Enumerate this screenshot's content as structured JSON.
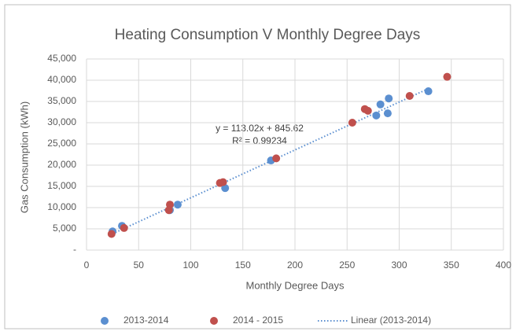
{
  "chart_data": {
    "type": "scatter",
    "title": "Heating Consumption V Monthly Degree Days",
    "x_label": "Monthly Degree Days",
    "y_label": "Gas Consumption  (kWh)",
    "series": [
      {
        "name": "2013-2014",
        "color": "#5b8fd0",
        "x": [
          25,
          34,
          80,
          87.5,
          133,
          177,
          278,
          282,
          289,
          290,
          328
        ],
        "values": [
          4400,
          5700,
          9400,
          10700,
          14600,
          21100,
          31700,
          34300,
          32200,
          35700,
          37400
        ]
      },
      {
        "name": "2014 - 2015",
        "color": "#c0504d",
        "x": [
          24,
          36,
          80,
          79,
          128,
          131,
          182,
          255,
          267,
          270,
          310,
          346
        ],
        "values": [
          3800,
          5200,
          10700,
          9400,
          15800,
          16000,
          21600,
          30000,
          33200,
          32800,
          36300,
          40800
        ]
      }
    ],
    "trendline": {
      "name": "Linear (2013-2014)",
      "color": "#5b8fd0",
      "equation": "y = 113.02x + 845.62",
      "r_squared": "R² = 0.99234"
    },
    "xlim": [
      0,
      400
    ],
    "xticks": [
      0,
      50,
      100,
      150,
      200,
      250,
      300,
      350,
      400
    ],
    "ylim": [
      0,
      45000
    ],
    "yticks": [
      {
        "value": 0,
        "label": "-"
      },
      {
        "value": 5000,
        "label": "5,000"
      },
      {
        "value": 10000,
        "label": "10,000"
      },
      {
        "value": 15000,
        "label": "15,000"
      },
      {
        "value": 20000,
        "label": "20,000"
      },
      {
        "value": 25000,
        "label": "25,000"
      },
      {
        "value": 30000,
        "label": "30,000"
      },
      {
        "value": 35000,
        "label": "35,000"
      },
      {
        "value": 40000,
        "label": "40,000"
      },
      {
        "value": 45000,
        "label": "45,000"
      }
    ],
    "grid": true,
    "legend": "bottom"
  }
}
